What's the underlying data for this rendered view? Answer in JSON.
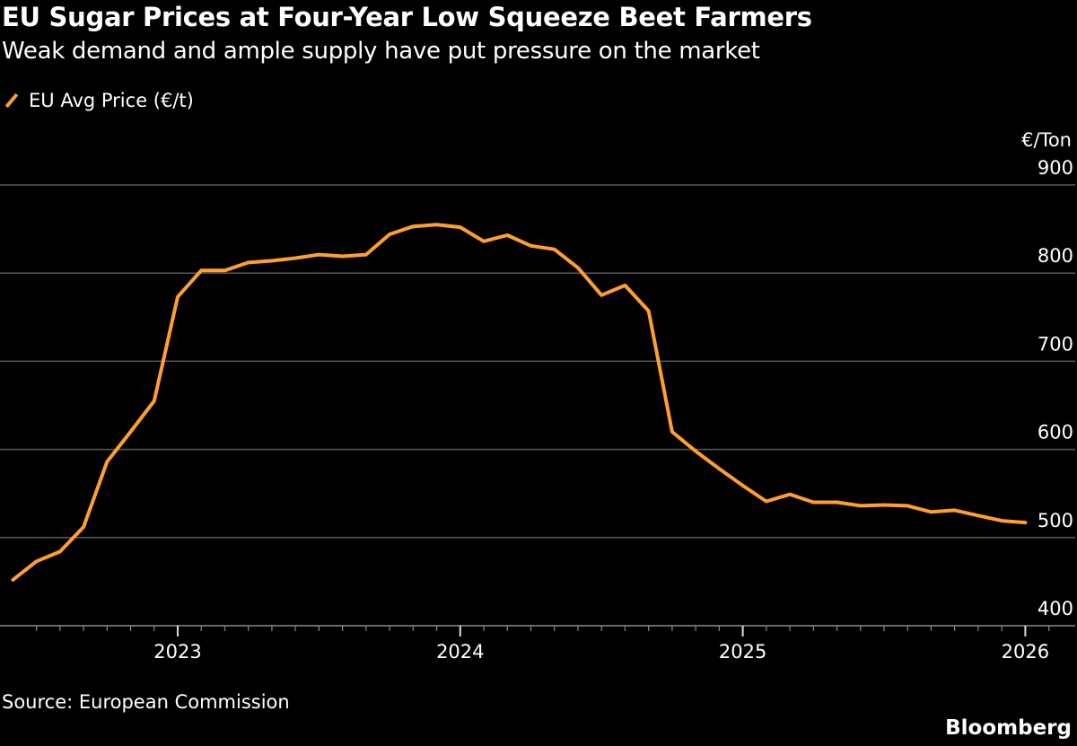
{
  "chart_data": {
    "type": "line",
    "title": "EU Sugar Prices at Four-Year Low Squeeze Beet Farmers",
    "subtitle": "Weak demand and ample supply have put pressure on the market",
    "ylabel": "€/Ton",
    "ylim": [
      400,
      900
    ],
    "yticks": [
      400,
      500,
      600,
      700,
      800,
      900
    ],
    "xticks": [
      "2023",
      "2024",
      "2025",
      "2026"
    ],
    "grid": true,
    "legend_position": "top-left",
    "source": "Source: European Commission",
    "brand": "Bloomberg",
    "series": [
      {
        "name": "EU Avg Price (€/t)",
        "color": "#ff9f2e",
        "x": [
          "2022-06",
          "2022-07",
          "2022-08",
          "2022-09",
          "2022-10",
          "2022-11",
          "2022-12",
          "2023-01",
          "2023-02",
          "2023-03",
          "2023-04",
          "2023-05",
          "2023-06",
          "2023-07",
          "2023-08",
          "2023-09",
          "2023-10",
          "2023-11",
          "2023-12",
          "2024-01",
          "2024-02",
          "2024-03",
          "2024-04",
          "2024-05",
          "2024-06",
          "2024-07",
          "2024-08",
          "2024-09",
          "2024-10",
          "2024-11",
          "2024-12",
          "2025-01",
          "2025-02",
          "2025-03",
          "2025-04",
          "2025-05",
          "2025-06",
          "2025-07",
          "2025-08",
          "2025-09",
          "2025-10",
          "2025-11",
          "2025-12",
          "2026-01"
        ],
        "values": [
          452,
          473,
          484,
          512,
          586,
          620,
          655,
          773,
          803,
          803,
          812,
          814,
          817,
          821,
          819,
          821,
          844,
          853,
          855,
          852,
          836,
          843,
          831,
          827,
          806,
          775,
          786,
          757,
          620,
          598,
          578,
          559,
          541,
          549,
          540,
          540,
          536,
          537,
          536,
          529,
          531,
          525,
          519,
          517
        ]
      }
    ]
  }
}
